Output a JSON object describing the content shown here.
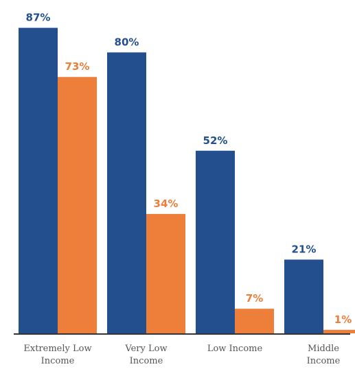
{
  "chart_data": {
    "type": "bar",
    "categories": [
      [
        "Extremely Low",
        "Income"
      ],
      [
        "Very Low",
        "Income"
      ],
      [
        "Low Income"
      ],
      [
        "Middle",
        "Income"
      ]
    ],
    "series": [
      {
        "values": [
          87,
          80,
          52,
          21
        ],
        "labels": [
          "87%",
          "80%",
          "52%",
          "21%"
        ],
        "color": "#244f8f"
      },
      {
        "values": [
          73,
          34,
          7,
          1
        ],
        "labels": [
          "73%",
          "34%",
          "7%",
          "1%"
        ],
        "color": "#ee7f3a"
      }
    ],
    "ylim": [
      0,
      100
    ],
    "grid": false,
    "legend": "none",
    "axis_color": "#333333"
  }
}
